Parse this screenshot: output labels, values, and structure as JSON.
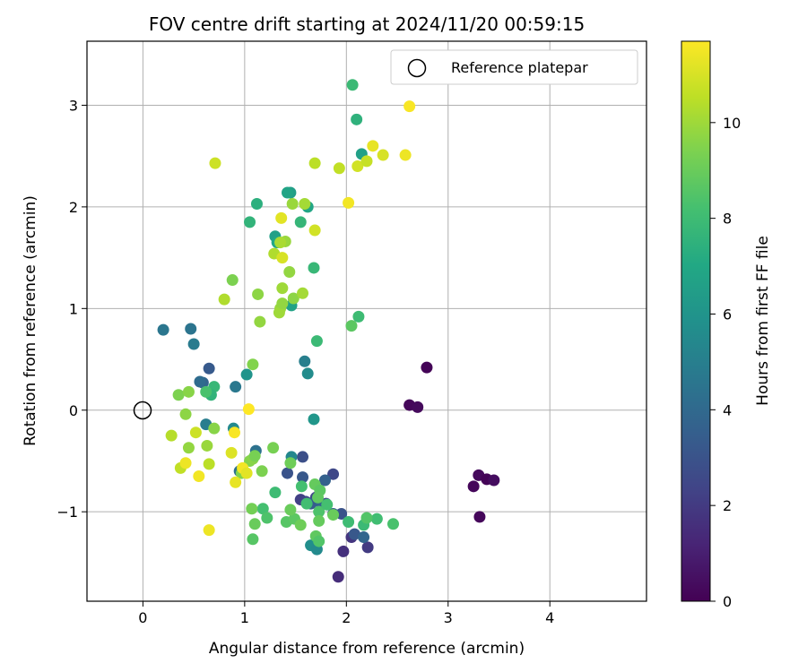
{
  "chart_data": {
    "type": "scatter",
    "title": "FOV centre drift starting at 2024/11/20 00:59:15",
    "xlabel": "Angular distance from reference (arcmin)",
    "ylabel": "Rotation from reference (arcmin)",
    "xlim": [
      -0.55,
      4.95
    ],
    "ylim": [
      -1.88,
      3.63
    ],
    "xticks": [
      0,
      1,
      2,
      3,
      4
    ],
    "yticks": [
      -1,
      0,
      1,
      2,
      3
    ],
    "grid": true,
    "legend": {
      "placement": "top-right",
      "label": "Reference platepar"
    },
    "reference_point": {
      "x": 0,
      "y": 0
    },
    "colorbar": {
      "label": "Hours from first FF file",
      "min": 0,
      "max": 11.7,
      "ticks": [
        0,
        2,
        4,
        6,
        8,
        10
      ],
      "colormap": "viridis"
    },
    "points": [
      [
        2.62,
        0.05,
        0.2
      ],
      [
        2.7,
        0.03,
        0.3
      ],
      [
        2.79,
        0.42,
        0.1
      ],
      [
        3.25,
        -0.75,
        0.2
      ],
      [
        3.3,
        -0.64,
        0.3
      ],
      [
        3.38,
        -0.68,
        0.1
      ],
      [
        3.45,
        -0.69,
        0.4
      ],
      [
        3.31,
        -1.05,
        0.2
      ],
      [
        1.92,
        -1.64,
        1.5
      ],
      [
        1.97,
        -1.39,
        1.6
      ],
      [
        2.05,
        -1.25,
        1.8
      ],
      [
        2.21,
        -1.35,
        2.0
      ],
      [
        1.55,
        -0.88,
        2.2
      ],
      [
        1.6,
        -0.9,
        2.4
      ],
      [
        1.7,
        -0.86,
        2.5
      ],
      [
        1.8,
        -0.92,
        2.6
      ],
      [
        1.87,
        -0.63,
        2.5
      ],
      [
        1.57,
        -0.46,
        2.8
      ],
      [
        1.42,
        -0.62,
        3.0
      ],
      [
        1.57,
        -0.66,
        3.2
      ],
      [
        1.95,
        -1.02,
        3.0
      ],
      [
        1.65,
        -0.92,
        3.4
      ],
      [
        1.79,
        -0.69,
        3.6
      ],
      [
        2.08,
        -1.22,
        3.2
      ],
      [
        1.87,
        -1.02,
        3.5
      ],
      [
        1.75,
        -0.92,
        3.7
      ],
      [
        2.17,
        -1.25,
        3.8
      ],
      [
        0.2,
        0.79,
        4.6
      ],
      [
        0.47,
        0.8,
        4.5
      ],
      [
        0.5,
        0.65,
        4.8
      ],
      [
        0.65,
        0.41,
        3.3
      ],
      [
        0.59,
        0.27,
        3.8
      ],
      [
        0.56,
        0.28,
        4.1
      ],
      [
        0.62,
        -0.14,
        4.9
      ],
      [
        0.91,
        0.23,
        4.7
      ],
      [
        1.11,
        -0.4,
        4.4
      ],
      [
        0.95,
        -0.6,
        4.3
      ],
      [
        1.59,
        0.48,
        5.0
      ],
      [
        1.62,
        0.36,
        5.6
      ],
      [
        1.02,
        0.35,
        6.0
      ],
      [
        1.68,
        -0.09,
        6.1
      ],
      [
        1.46,
        -0.46,
        5.4
      ],
      [
        0.89,
        -0.18,
        5.5
      ],
      [
        1.65,
        -1.33,
        5.7
      ],
      [
        1.71,
        -1.37,
        5.5
      ],
      [
        1.45,
        2.14,
        6.5
      ],
      [
        1.42,
        2.14,
        6.8
      ],
      [
        1.3,
        1.71,
        6.6
      ],
      [
        1.32,
        1.65,
        7.0
      ],
      [
        1.46,
        1.03,
        6.7
      ],
      [
        1.62,
        2.0,
        6.9
      ],
      [
        2.15,
        2.52,
        6.6
      ],
      [
        2.1,
        2.86,
        7.5
      ],
      [
        2.06,
        3.2,
        7.9
      ],
      [
        1.12,
        2.03,
        7.4
      ],
      [
        1.05,
        1.85,
        7.6
      ],
      [
        1.55,
        1.85,
        7.7
      ],
      [
        1.68,
        1.4,
        7.8
      ],
      [
        1.71,
        0.68,
        7.9
      ],
      [
        2.12,
        0.92,
        8.0
      ],
      [
        0.7,
        0.23,
        7.8
      ],
      [
        0.67,
        0.15,
        7.6
      ],
      [
        0.62,
        0.18,
        8.3
      ],
      [
        1.3,
        -0.81,
        8.0
      ],
      [
        1.56,
        -0.75,
        8.2
      ],
      [
        1.61,
        -0.92,
        8.1
      ],
      [
        1.73,
        -1.0,
        8.4
      ],
      [
        1.81,
        -0.93,
        8.2
      ],
      [
        2.02,
        -1.1,
        8.0
      ],
      [
        2.17,
        -1.13,
        7.9
      ],
      [
        2.3,
        -1.07,
        8.1
      ],
      [
        2.46,
        -1.12,
        8.3
      ],
      [
        2.2,
        -1.06,
        8.5
      ],
      [
        1.18,
        -0.97,
        8.2
      ],
      [
        1.22,
        -1.06,
        8.4
      ],
      [
        1.08,
        -1.27,
        8.6
      ],
      [
        2.05,
        0.83,
        8.7
      ],
      [
        1.41,
        -1.1,
        8.6
      ],
      [
        1.49,
        -1.07,
        8.7
      ],
      [
        1.7,
        -1.24,
        8.8
      ],
      [
        1.73,
        -1.29,
        8.5
      ],
      [
        1.73,
        -1.09,
        8.9
      ],
      [
        1.87,
        -1.03,
        9.0
      ],
      [
        1.69,
        -0.73,
        8.9
      ],
      [
        1.74,
        -0.79,
        8.7
      ],
      [
        1.72,
        -0.86,
        8.8
      ],
      [
        1.55,
        -1.13,
        9.1
      ],
      [
        1.45,
        -0.98,
        9.0
      ],
      [
        1.1,
        -1.12,
        9.0
      ],
      [
        1.07,
        -0.97,
        9.2
      ],
      [
        1.45,
        -0.52,
        9.1
      ],
      [
        1.28,
        -0.37,
        9.3
      ],
      [
        1.17,
        -0.6,
        9.4
      ],
      [
        1.05,
        -0.5,
        9.5
      ],
      [
        1.08,
        -0.48,
        9.6
      ],
      [
        0.97,
        -0.62,
        9.5
      ],
      [
        1.1,
        -0.45,
        9.3
      ],
      [
        0.35,
        0.15,
        9.4
      ],
      [
        0.45,
        0.18,
        9.6
      ],
      [
        0.42,
        -0.04,
        9.7
      ],
      [
        0.45,
        -0.37,
        9.8
      ],
      [
        0.63,
        -0.35,
        9.9
      ],
      [
        0.7,
        -0.18,
        9.6
      ],
      [
        0.88,
        1.28,
        9.4
      ],
      [
        1.13,
        1.14,
        9.7
      ],
      [
        1.15,
        0.87,
        9.8
      ],
      [
        1.08,
        0.45,
        9.5
      ],
      [
        1.35,
        1.0,
        9.9
      ],
      [
        1.34,
        0.96,
        10.0
      ],
      [
        1.37,
        1.05,
        9.8
      ],
      [
        1.44,
        1.36,
        9.8
      ],
      [
        1.48,
        1.1,
        9.7
      ],
      [
        1.57,
        1.15,
        10.1
      ],
      [
        1.37,
        1.2,
        10.0
      ],
      [
        1.4,
        1.66,
        9.9
      ],
      [
        1.35,
        1.65,
        10.2
      ],
      [
        1.29,
        1.54,
        10.3
      ],
      [
        1.47,
        2.03,
        9.9
      ],
      [
        1.59,
        2.03,
        10.1
      ],
      [
        0.8,
        1.09,
        10.3
      ],
      [
        0.28,
        -0.25,
        10.4
      ],
      [
        0.37,
        -0.57,
        10.6
      ],
      [
        0.52,
        -0.22,
        10.8
      ],
      [
        0.65,
        -0.53,
        10.5
      ],
      [
        0.71,
        2.43,
        10.8
      ],
      [
        1.69,
        2.43,
        10.5
      ],
      [
        1.93,
        2.38,
        10.6
      ],
      [
        2.11,
        2.4,
        10.9
      ],
      [
        2.2,
        2.45,
        10.7
      ],
      [
        1.69,
        1.77,
        10.9
      ],
      [
        2.02,
        2.04,
        11.5
      ],
      [
        1.36,
        1.89,
        11.2
      ],
      [
        1.37,
        1.5,
        11.0
      ],
      [
        2.26,
        2.6,
        11.3
      ],
      [
        2.36,
        2.51,
        11.0
      ],
      [
        2.58,
        2.51,
        11.4
      ],
      [
        2.62,
        2.99,
        11.6
      ],
      [
        0.87,
        -0.42,
        11.1
      ],
      [
        0.98,
        -0.57,
        11.5
      ],
      [
        1.02,
        -0.62,
        11.2
      ],
      [
        0.91,
        -0.71,
        11.3
      ],
      [
        0.9,
        -0.22,
        11.6
      ],
      [
        1.04,
        0.01,
        11.7
      ],
      [
        0.42,
        -0.52,
        11.4
      ],
      [
        0.55,
        -0.65,
        11.5
      ],
      [
        0.65,
        -1.18,
        11.4
      ]
    ]
  }
}
